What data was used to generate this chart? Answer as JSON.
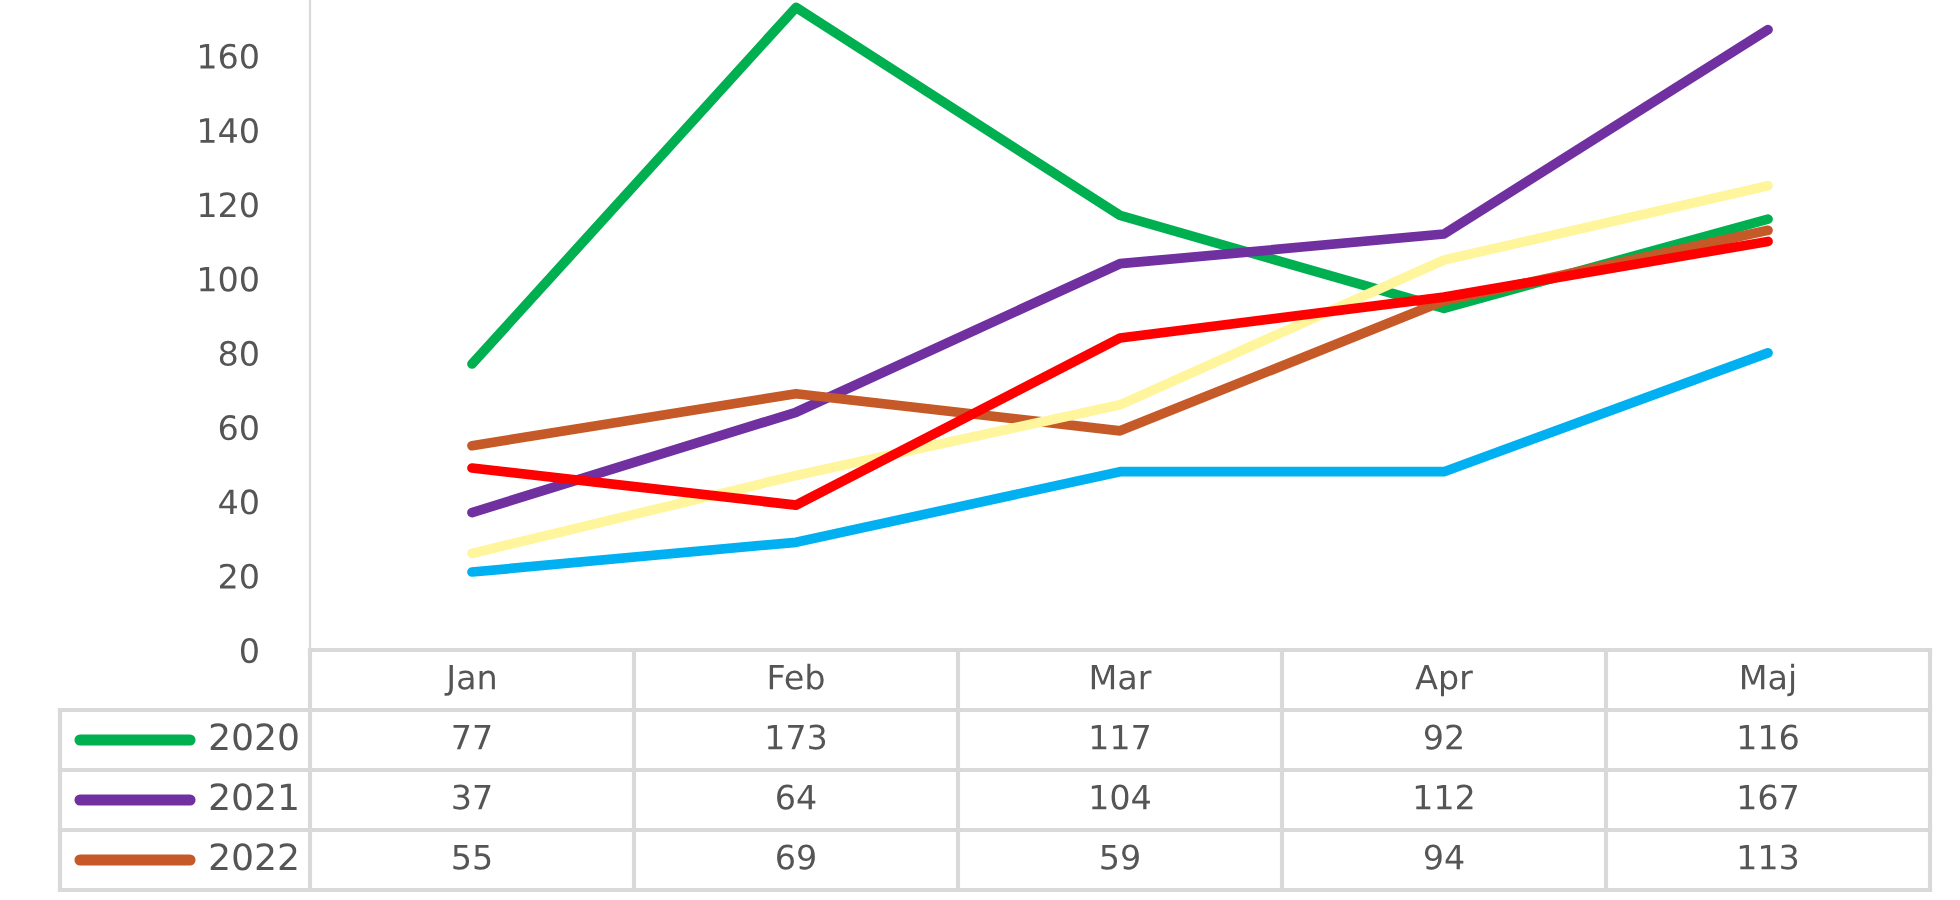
{
  "chart_data": {
    "type": "line",
    "categories": [
      "Jan",
      "Feb",
      "Mar",
      "Apr",
      "Maj"
    ],
    "ylim": [
      0,
      175
    ],
    "yticks": [
      0,
      20,
      40,
      60,
      80,
      100,
      120,
      140,
      160
    ],
    "grid": false,
    "legend": "bottom",
    "line_style": "solid",
    "marker": "none",
    "series": [
      {
        "name": "2020",
        "color": "#00b050",
        "values": [
          77,
          173,
          117,
          92,
          116
        ],
        "value_labels": [
          "77",
          "173",
          "117",
          "92",
          "116"
        ]
      },
      {
        "name": "2021",
        "color": "#7030a0",
        "values": [
          37,
          64,
          104,
          112,
          167
        ],
        "value_labels": [
          "37",
          "64",
          "104",
          "112",
          "167"
        ]
      },
      {
        "name": "2022",
        "color": "#c55a28",
        "values": [
          55,
          69,
          59,
          94,
          113
        ],
        "value_labels": [
          "55",
          "69",
          "59",
          "94",
          "113"
        ]
      },
      {
        "color": "#fff59d",
        "values": [
          26,
          47,
          66,
          105,
          125
        ]
      },
      {
        "color": "#ff0000",
        "values": [
          49,
          39,
          84,
          95,
          110
        ]
      },
      {
        "color": "#00b0f0",
        "values": [
          21,
          29,
          48,
          48,
          80
        ]
      }
    ]
  }
}
